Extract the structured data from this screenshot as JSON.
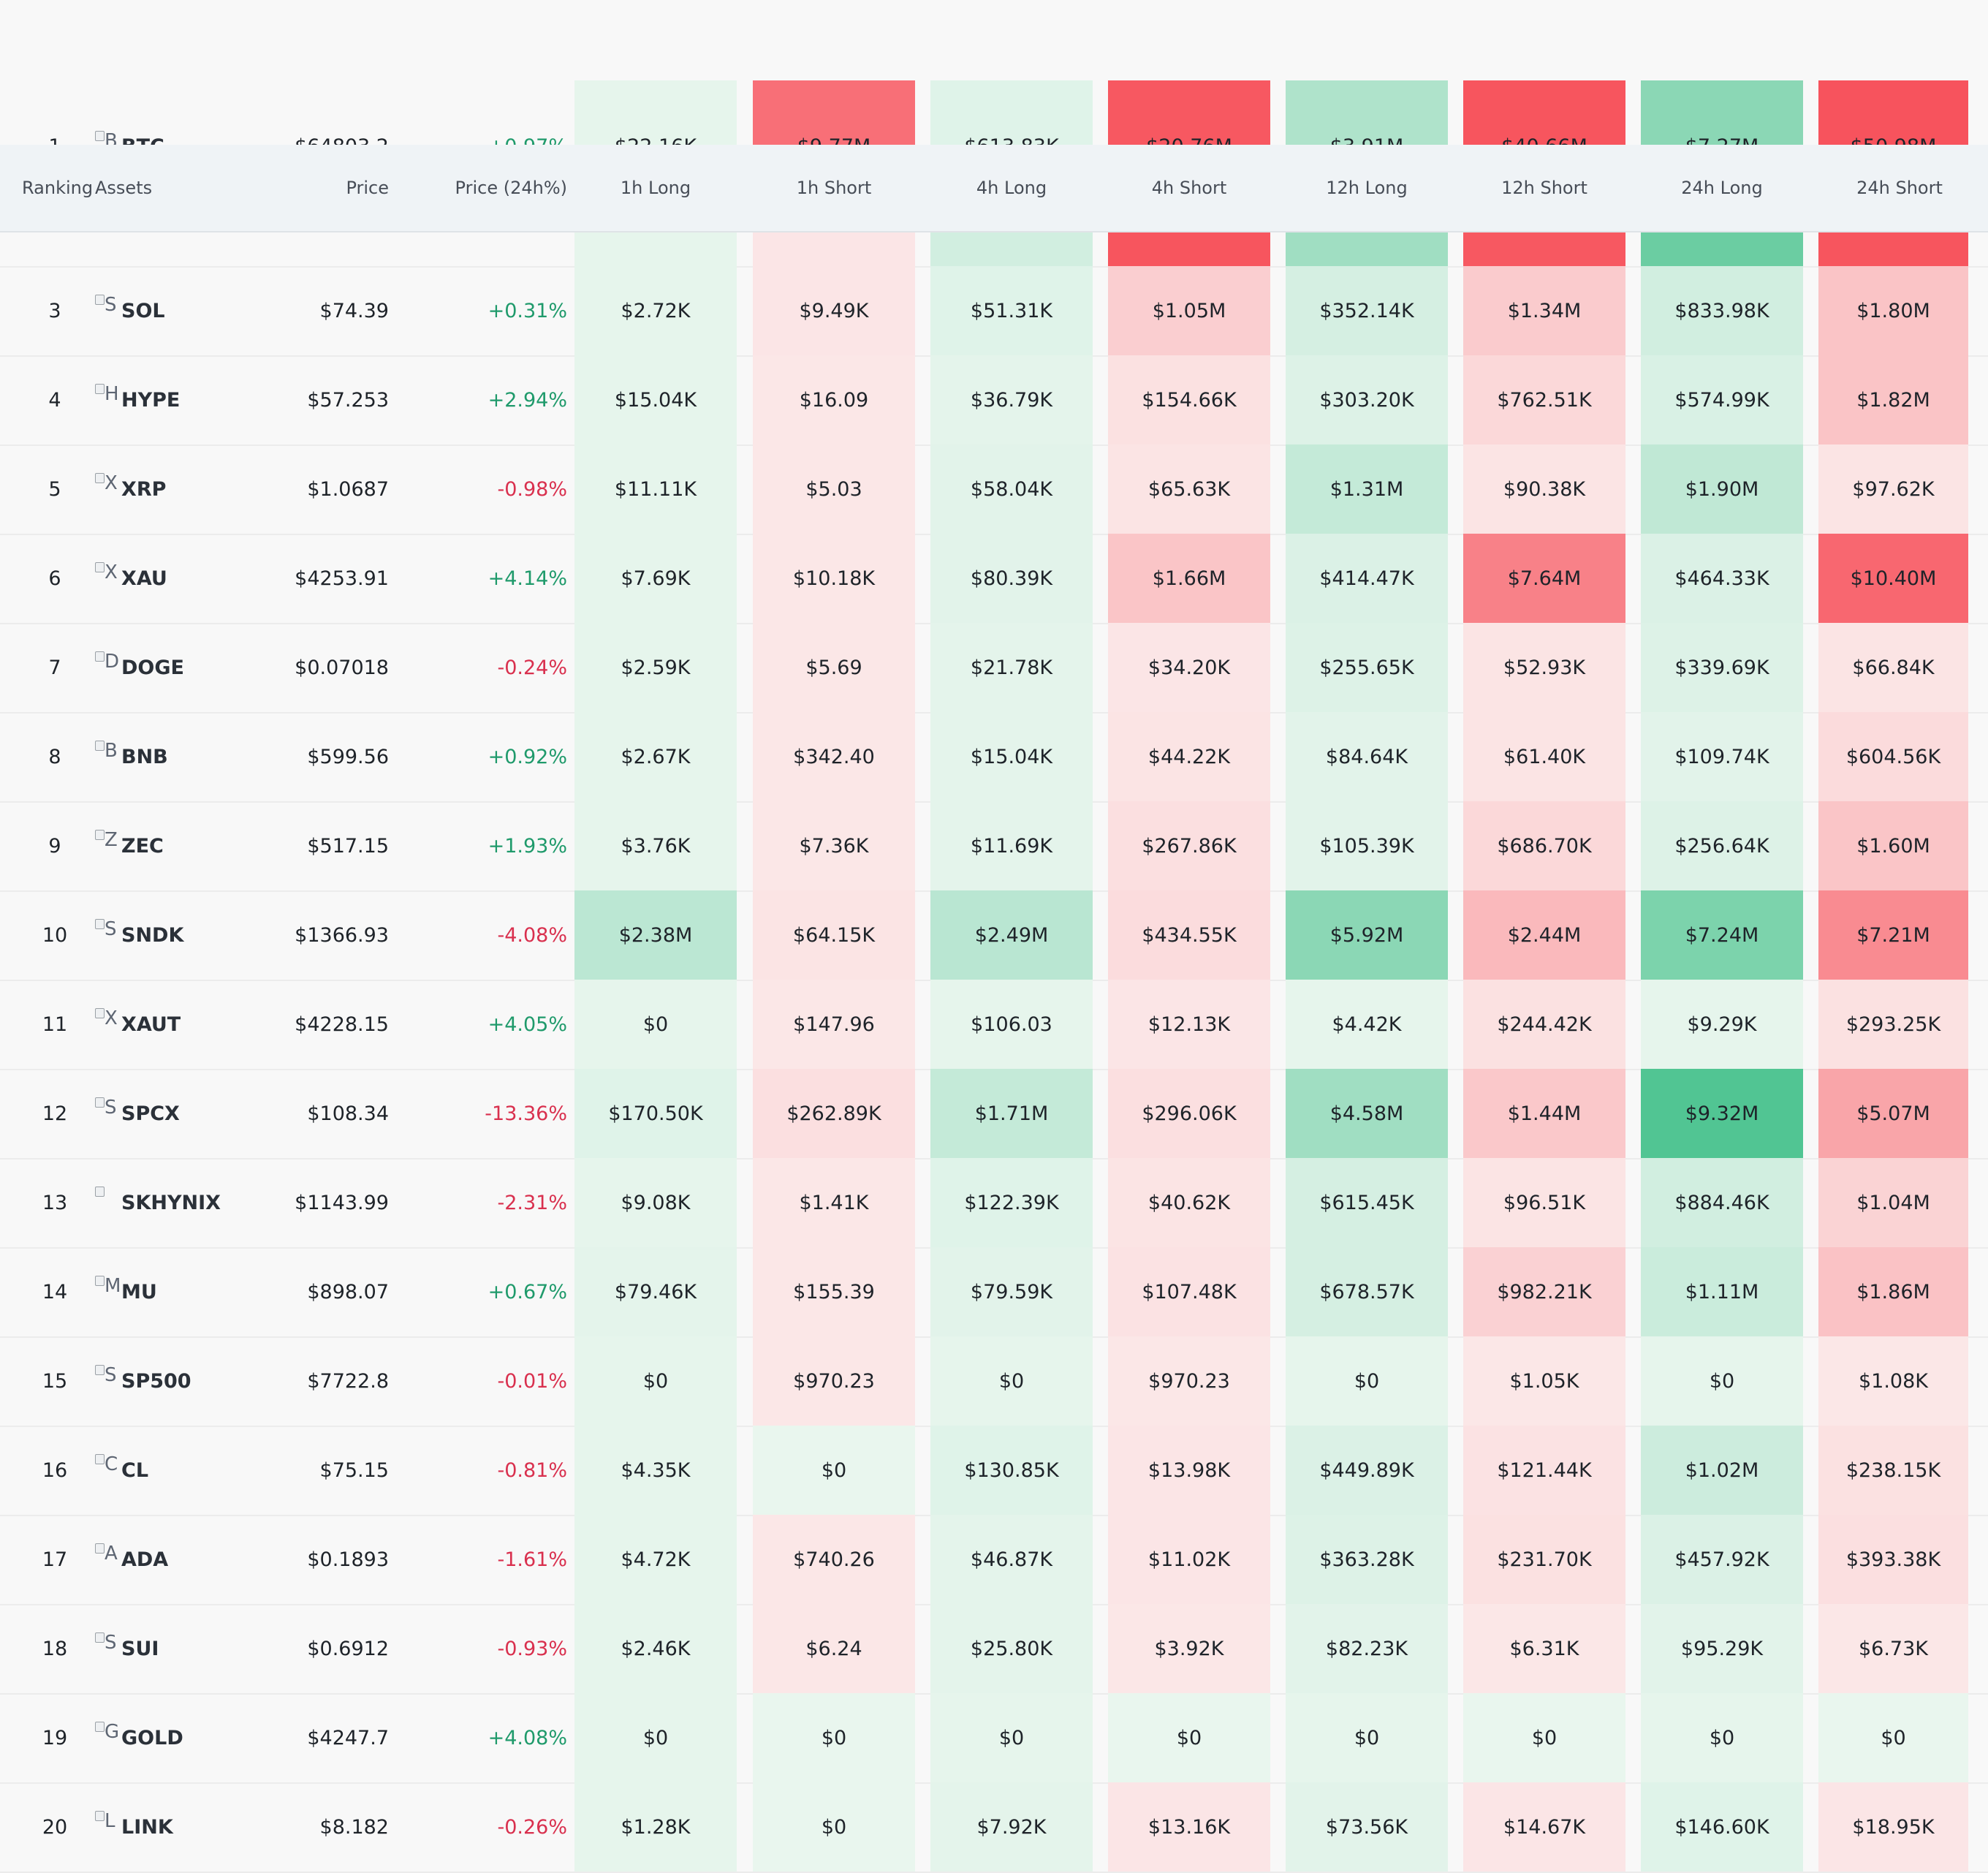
{
  "header": {
    "ranking": "Ranking",
    "assets": "Assets",
    "price": "Price",
    "change": "Price (24h%)",
    "cols": [
      "1h Long",
      "1h Short",
      "4h Long",
      "4h Short",
      "12h Long",
      "12h Short",
      "24h Long",
      "24h Short"
    ]
  },
  "colors": {
    "long": "#16b26f",
    "short": "#f7505a",
    "positive": "#1f9a6b",
    "negative": "#d9304e"
  },
  "rows": [
    {
      "rank": "1",
      "icon_letter": "B",
      "symbol": "BTC",
      "price": "$64803.2",
      "change": "+0.97%",
      "dir": "up",
      "cells": [
        "$22.16K",
        "$9.77M",
        "$613.83K",
        "$20.76M",
        "$3.91M",
        "$40.66M",
        "$7.27M",
        "$50.98M"
      ],
      "intensity": [
        0.02,
        0.8,
        0.05,
        0.95,
        0.28,
        0.97,
        0.45,
        0.98
      ]
    },
    {
      "rank": "",
      "icon_letter": "",
      "symbol": "",
      "price": "",
      "change": "",
      "dir": "",
      "cells": [
        "",
        "",
        "",
        "",
        "",
        "",
        "",
        ""
      ],
      "intensity": [
        0.02,
        0.03,
        0.12,
        0.97,
        0.35,
        0.95,
        0.6,
        0.97
      ]
    },
    {
      "rank": "3",
      "icon_letter": "S",
      "symbol": "SOL",
      "price": "$74.39",
      "change": "+0.31%",
      "dir": "up",
      "cells": [
        "$2.72K",
        "$9.49K",
        "$51.31K",
        "$1.05M",
        "$352.14K",
        "$1.34M",
        "$833.98K",
        "$1.80M"
      ],
      "intensity": [
        0.02,
        0.03,
        0.05,
        0.18,
        0.1,
        0.2,
        0.12,
        0.25
      ]
    },
    {
      "rank": "4",
      "icon_letter": "H",
      "symbol": "HYPE",
      "price": "$57.253",
      "change": "+2.94%",
      "dir": "up",
      "cells": [
        "$15.04K",
        "$16.09",
        "$36.79K",
        "$154.66K",
        "$303.20K",
        "$762.51K",
        "$574.99K",
        "$1.82M"
      ],
      "intensity": [
        0.02,
        0.02,
        0.03,
        0.06,
        0.06,
        0.12,
        0.08,
        0.25
      ]
    },
    {
      "rank": "5",
      "icon_letter": "X",
      "symbol": "XRP",
      "price": "$1.0687",
      "change": "-0.98%",
      "dir": "down",
      "cells": [
        "$11.11K",
        "$5.03",
        "$58.04K",
        "$65.63K",
        "$1.31M",
        "$90.38K",
        "$1.90M",
        "$97.62K"
      ],
      "intensity": [
        0.02,
        0.02,
        0.04,
        0.04,
        0.18,
        0.04,
        0.2,
        0.04
      ]
    },
    {
      "rank": "6",
      "icon_letter": "X",
      "symbol": "XAU",
      "price": "$4253.91",
      "change": "+4.14%",
      "dir": "up",
      "cells": [
        "$7.69K",
        "$10.18K",
        "$80.39K",
        "$1.66M",
        "$414.47K",
        "$7.64M",
        "$464.33K",
        "$10.40M"
      ],
      "intensity": [
        0.02,
        0.02,
        0.04,
        0.24,
        0.07,
        0.68,
        0.07,
        0.85
      ]
    },
    {
      "rank": "7",
      "icon_letter": "D",
      "symbol": "DOGE",
      "price": "$0.07018",
      "change": "-0.24%",
      "dir": "down",
      "cells": [
        "$2.59K",
        "$5.69",
        "$21.78K",
        "$34.20K",
        "$255.65K",
        "$52.93K",
        "$339.69K",
        "$66.84K"
      ],
      "intensity": [
        0.02,
        0.02,
        0.03,
        0.03,
        0.06,
        0.04,
        0.06,
        0.04
      ]
    },
    {
      "rank": "8",
      "icon_letter": "B",
      "symbol": "BNB",
      "price": "$599.56",
      "change": "+0.92%",
      "dir": "up",
      "cells": [
        "$2.67K",
        "$342.40",
        "$15.04K",
        "$44.22K",
        "$84.64K",
        "$61.40K",
        "$109.74K",
        "$604.56K"
      ],
      "intensity": [
        0.02,
        0.02,
        0.03,
        0.04,
        0.04,
        0.04,
        0.04,
        0.1
      ]
    },
    {
      "rank": "9",
      "icon_letter": "Z",
      "symbol": "ZEC",
      "price": "$517.15",
      "change": "+1.93%",
      "dir": "up",
      "cells": [
        "$3.76K",
        "$7.36K",
        "$11.69K",
        "$267.86K",
        "$105.39K",
        "$686.70K",
        "$256.64K",
        "$1.60M"
      ],
      "intensity": [
        0.02,
        0.02,
        0.03,
        0.07,
        0.04,
        0.12,
        0.06,
        0.24
      ]
    },
    {
      "rank": "10",
      "icon_letter": "S",
      "symbol": "SNDK",
      "price": "$1366.93",
      "change": "-4.08%",
      "dir": "down",
      "cells": [
        "$2.38M",
        "$64.15K",
        "$2.49M",
        "$434.55K",
        "$5.92M",
        "$2.44M",
        "$7.24M",
        "$7.21M"
      ],
      "intensity": [
        0.22,
        0.04,
        0.23,
        0.09,
        0.45,
        0.32,
        0.52,
        0.62
      ]
    },
    {
      "rank": "11",
      "icon_letter": "X",
      "symbol": "XAUT",
      "price": "$4228.15",
      "change": "+4.05%",
      "dir": "up",
      "cells": [
        "$0",
        "$147.96",
        "$106.03",
        "$12.13K",
        "$4.42K",
        "$244.42K",
        "$9.29K",
        "$293.25K"
      ],
      "intensity": [
        0.02,
        0.02,
        0.02,
        0.03,
        0.02,
        0.06,
        0.02,
        0.06
      ]
    },
    {
      "rank": "12",
      "icon_letter": "S",
      "symbol": "SPCX",
      "price": "$108.34",
      "change": "-13.36%",
      "dir": "down",
      "cells": [
        "$170.50K",
        "$262.89K",
        "$1.71M",
        "$296.06K",
        "$4.58M",
        "$1.44M",
        "$9.32M",
        "$5.07M"
      ],
      "intensity": [
        0.05,
        0.07,
        0.18,
        0.07,
        0.35,
        0.22,
        0.72,
        0.45
      ]
    },
    {
      "rank": "13",
      "icon_letter": "",
      "symbol": "SKHYNIX",
      "price": "$1143.99",
      "change": "-2.31%",
      "dir": "down",
      "cells": [
        "$9.08K",
        "$1.41K",
        "$122.39K",
        "$40.62K",
        "$615.45K",
        "$96.51K",
        "$884.46K",
        "$1.04M"
      ],
      "intensity": [
        0.02,
        0.02,
        0.05,
        0.04,
        0.1,
        0.04,
        0.12,
        0.15
      ]
    },
    {
      "rank": "14",
      "icon_letter": "M",
      "symbol": "MU",
      "price": "$898.07",
      "change": "+0.67%",
      "dir": "up",
      "cells": [
        "$79.46K",
        "$155.39",
        "$79.59K",
        "$107.48K",
        "$678.57K",
        "$982.21K",
        "$1.11M",
        "$1.86M"
      ],
      "intensity": [
        0.03,
        0.02,
        0.04,
        0.05,
        0.1,
        0.16,
        0.15,
        0.26
      ]
    },
    {
      "rank": "15",
      "icon_letter": "S",
      "symbol": "SP500",
      "price": "$7722.8",
      "change": "-0.01%",
      "dir": "down",
      "cells": [
        "$0",
        "$970.23",
        "$0",
        "$970.23",
        "$0",
        "$1.05K",
        "$0",
        "$1.08K"
      ],
      "intensity": [
        0.02,
        0.02,
        0.02,
        0.02,
        0.02,
        0.02,
        0.02,
        0.02
      ]
    },
    {
      "rank": "16",
      "icon_letter": "C",
      "symbol": "CL",
      "price": "$75.15",
      "change": "-0.81%",
      "dir": "down",
      "cells": [
        "$4.35K",
        "$0",
        "$130.85K",
        "$13.98K",
        "$449.89K",
        "$121.44K",
        "$1.02M",
        "$238.15K"
      ],
      "intensity": [
        0.02,
        0.02,
        0.05,
        0.03,
        0.07,
        0.05,
        0.14,
        0.06
      ]
    },
    {
      "rank": "17",
      "icon_letter": "A",
      "symbol": "ADA",
      "price": "$0.1893",
      "change": "-1.61%",
      "dir": "down",
      "cells": [
        "$4.72K",
        "$740.26",
        "$46.87K",
        "$11.02K",
        "$363.28K",
        "$231.70K",
        "$457.92K",
        "$393.38K"
      ],
      "intensity": [
        0.02,
        0.02,
        0.03,
        0.03,
        0.06,
        0.06,
        0.07,
        0.07
      ]
    },
    {
      "rank": "18",
      "icon_letter": "S",
      "symbol": "SUI",
      "price": "$0.6912",
      "change": "-0.93%",
      "dir": "down",
      "cells": [
        "$2.46K",
        "$6.24",
        "$25.80K",
        "$3.92K",
        "$82.23K",
        "$6.31K",
        "$95.29K",
        "$6.73K"
      ],
      "intensity": [
        0.02,
        0.02,
        0.03,
        0.02,
        0.04,
        0.02,
        0.04,
        0.02
      ]
    },
    {
      "rank": "19",
      "icon_letter": "G",
      "symbol": "GOLD",
      "price": "$4247.7",
      "change": "+4.08%",
      "dir": "up",
      "cells": [
        "$0",
        "$0",
        "$0",
        "$0",
        "$0",
        "$0",
        "$0",
        "$0"
      ],
      "intensity": [
        0.02,
        0.02,
        0.02,
        0.02,
        0.02,
        0.02,
        0.02,
        0.02
      ]
    },
    {
      "rank": "20",
      "icon_letter": "L",
      "symbol": "LINK",
      "price": "$8.182",
      "change": "-0.26%",
      "dir": "down",
      "cells": [
        "$1.28K",
        "$0",
        "$7.92K",
        "$13.16K",
        "$73.56K",
        "$14.67K",
        "$146.60K",
        "$18.95K"
      ],
      "intensity": [
        0.02,
        0.02,
        0.03,
        0.03,
        0.04,
        0.03,
        0.05,
        0.03
      ]
    }
  ]
}
